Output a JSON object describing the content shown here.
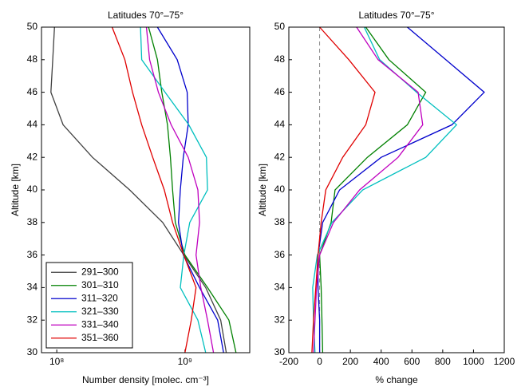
{
  "chart_data": [
    {
      "type": "line",
      "title": "Latitudes 70°–75°",
      "x_label": "Number density [molec. cm⁻³]",
      "y_label": "Altitude [km]",
      "x_log": true,
      "xlim": [
        76000000,
        3200000000
      ],
      "xticks": [
        {
          "value": 100000000,
          "label": "10⁸"
        },
        {
          "value": 1000000000,
          "label": "10⁹"
        }
      ],
      "ylim": [
        30,
        50
      ],
      "yticks": [
        30,
        32,
        34,
        36,
        38,
        40,
        42,
        44,
        46,
        48,
        50
      ],
      "y": [
        50,
        48,
        46,
        44,
        42,
        40,
        38,
        36,
        34,
        32,
        30
      ],
      "legend": "lower left",
      "series": [
        {
          "name": "291–300",
          "color": "#404040",
          "values": [
            96000000,
            93000000,
            90000000,
            112000000,
            190000000,
            370000000,
            670000000,
            980000000,
            1450000000,
            1900000000,
            2100000000
          ]
        },
        {
          "name": "301–310",
          "color": "#008000",
          "values": [
            520000000,
            610000000,
            660000000,
            730000000,
            770000000,
            800000000,
            840000000,
            1000000000,
            1500000000,
            2200000000,
            2500000000
          ]
        },
        {
          "name": "311–320",
          "color": "#0000cc",
          "values": [
            610000000,
            870000000,
            1040000000,
            1060000000,
            970000000,
            920000000,
            890000000,
            970000000,
            1300000000,
            1800000000,
            2000000000
          ]
        },
        {
          "name": "321–330",
          "color": "#00bfbf",
          "values": [
            450000000,
            460000000,
            700000000,
            1070000000,
            1470000000,
            1500000000,
            1090000000,
            980000000,
            920000000,
            1260000000,
            1450000000
          ]
        },
        {
          "name": "331–340",
          "color": "#bf00bf",
          "values": [
            500000000,
            530000000,
            620000000,
            780000000,
            1060000000,
            1260000000,
            1300000000,
            1220000000,
            1330000000,
            1500000000,
            1670000000
          ]
        },
        {
          "name": "351–360",
          "color": "#e00000",
          "values": [
            270000000,
            340000000,
            390000000,
            460000000,
            560000000,
            690000000,
            800000000,
            980000000,
            1220000000,
            1120000000,
            1000000000
          ]
        }
      ]
    },
    {
      "type": "line",
      "title": "Latitudes 70°–75°",
      "x_label": "% change",
      "y_label": "Altitude [km]",
      "x_log": false,
      "xlim": [
        -200,
        1200
      ],
      "xticks": [
        -200,
        0,
        200,
        400,
        600,
        800,
        1000,
        1200
      ],
      "ylim": [
        30,
        50
      ],
      "yticks": [
        30,
        32,
        34,
        36,
        38,
        40,
        42,
        44,
        46,
        48,
        50
      ],
      "zero_line": true,
      "y": [
        50,
        48,
        46,
        44,
        42,
        40,
        38,
        36,
        34,
        32,
        30
      ],
      "series": [
        {
          "color": "#008000",
          "values": [
            300,
            450,
            690,
            570,
            310,
            100,
            75,
            0,
            10,
            15,
            20
          ]
        },
        {
          "color": "#0000cc",
          "values": [
            570,
            820,
            1070,
            860,
            400,
            130,
            20,
            -10,
            -10,
            0,
            0
          ]
        },
        {
          "color": "#00bfbf",
          "values": [
            290,
            390,
            630,
            890,
            690,
            280,
            80,
            -15,
            -45,
            -40,
            -30
          ]
        },
        {
          "color": "#bf00bf",
          "values": [
            240,
            380,
            640,
            670,
            510,
            260,
            90,
            0,
            -20,
            -30,
            -40
          ]
        },
        {
          "color": "#e00000",
          "values": [
            0,
            190,
            360,
            300,
            150,
            40,
            10,
            -10,
            -25,
            -40,
            -50
          ]
        }
      ]
    }
  ]
}
